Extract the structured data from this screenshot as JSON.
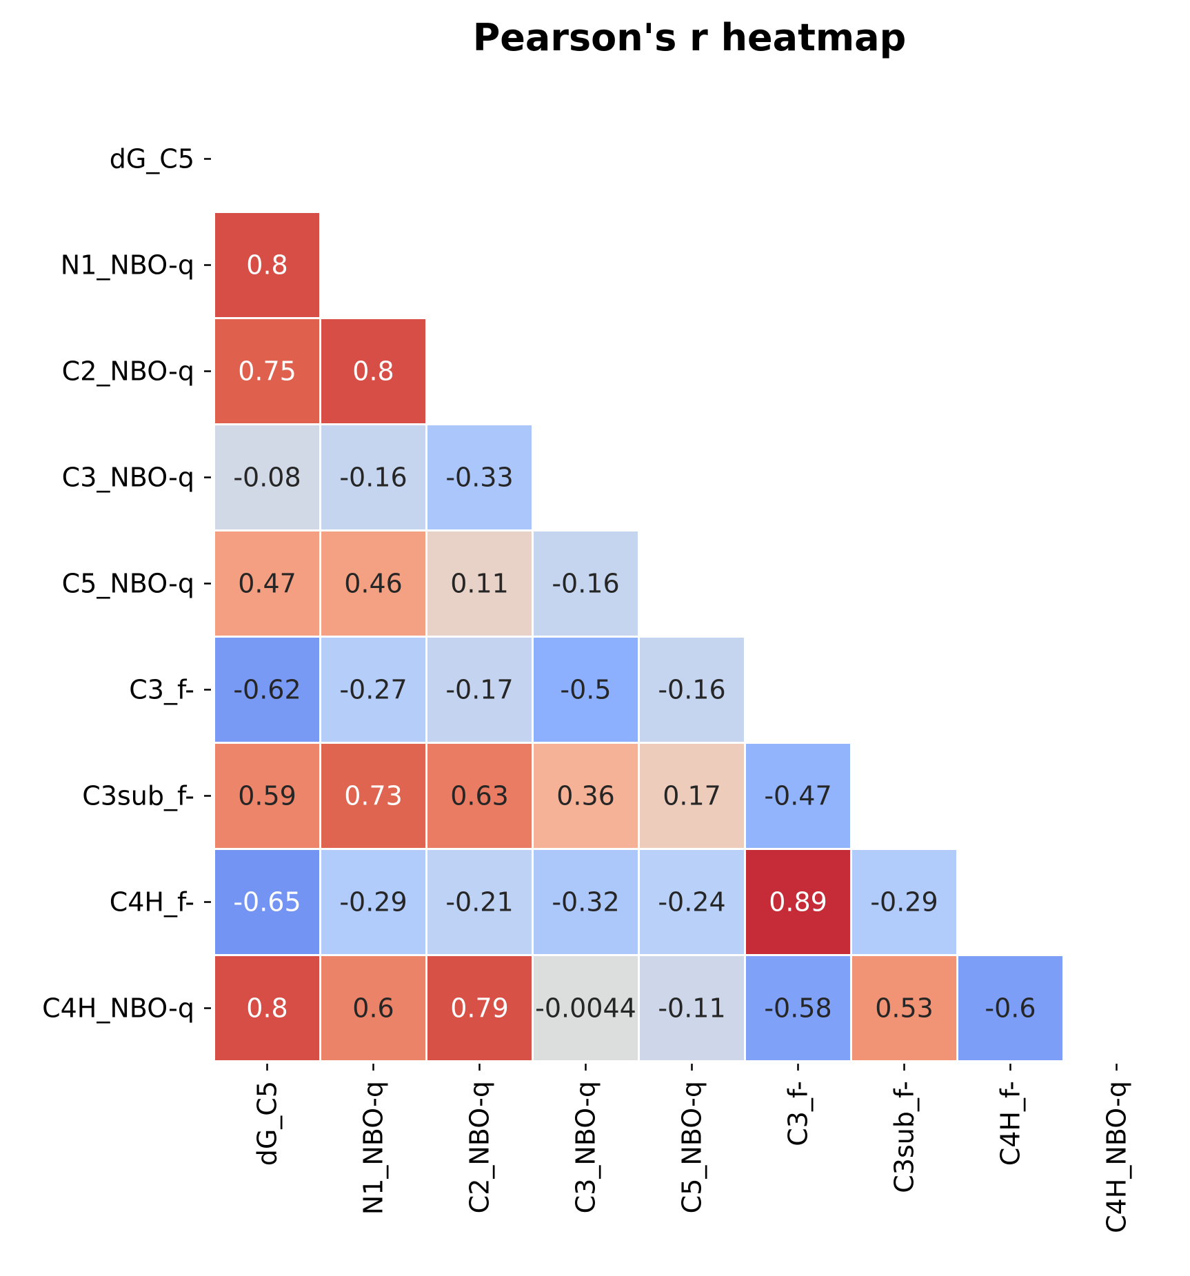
{
  "chart_data": {
    "type": "heatmap",
    "title": "Pearson's r heatmap",
    "mask": "upper-triangle-including-diagonal",
    "colormap": "coolwarm",
    "vmin": -1,
    "vmax": 1,
    "colorbar": false,
    "labels": [
      "dG_C5",
      "N1_NBO-q",
      "C2_NBO-q",
      "C3_NBO-q",
      "C5_NBO-q",
      "C3_f-",
      "C3sub_f-",
      "C4H_f-",
      "C4H_NBO-q"
    ],
    "cells": [
      {
        "row": 1,
        "col": 0,
        "value": 0.8,
        "label": "0.8"
      },
      {
        "row": 2,
        "col": 0,
        "value": 0.75,
        "label": "0.75"
      },
      {
        "row": 2,
        "col": 1,
        "value": 0.8,
        "label": "0.8"
      },
      {
        "row": 3,
        "col": 0,
        "value": -0.08,
        "label": "-0.08"
      },
      {
        "row": 3,
        "col": 1,
        "value": -0.16,
        "label": "-0.16"
      },
      {
        "row": 3,
        "col": 2,
        "value": -0.33,
        "label": "-0.33"
      },
      {
        "row": 4,
        "col": 0,
        "value": 0.47,
        "label": "0.47"
      },
      {
        "row": 4,
        "col": 1,
        "value": 0.46,
        "label": "0.46"
      },
      {
        "row": 4,
        "col": 2,
        "value": 0.11,
        "label": "0.11"
      },
      {
        "row": 4,
        "col": 3,
        "value": -0.16,
        "label": "-0.16"
      },
      {
        "row": 5,
        "col": 0,
        "value": -0.62,
        "label": "-0.62"
      },
      {
        "row": 5,
        "col": 1,
        "value": -0.27,
        "label": "-0.27"
      },
      {
        "row": 5,
        "col": 2,
        "value": -0.17,
        "label": "-0.17"
      },
      {
        "row": 5,
        "col": 3,
        "value": -0.5,
        "label": "-0.5"
      },
      {
        "row": 5,
        "col": 4,
        "value": -0.16,
        "label": "-0.16"
      },
      {
        "row": 6,
        "col": 0,
        "value": 0.59,
        "label": "0.59"
      },
      {
        "row": 6,
        "col": 1,
        "value": 0.73,
        "label": "0.73"
      },
      {
        "row": 6,
        "col": 2,
        "value": 0.63,
        "label": "0.63"
      },
      {
        "row": 6,
        "col": 3,
        "value": 0.36,
        "label": "0.36"
      },
      {
        "row": 6,
        "col": 4,
        "value": 0.17,
        "label": "0.17"
      },
      {
        "row": 6,
        "col": 5,
        "value": -0.47,
        "label": "-0.47"
      },
      {
        "row": 7,
        "col": 0,
        "value": -0.65,
        "label": "-0.65"
      },
      {
        "row": 7,
        "col": 1,
        "value": -0.29,
        "label": "-0.29"
      },
      {
        "row": 7,
        "col": 2,
        "value": -0.21,
        "label": "-0.21"
      },
      {
        "row": 7,
        "col": 3,
        "value": -0.32,
        "label": "-0.32"
      },
      {
        "row": 7,
        "col": 4,
        "value": -0.24,
        "label": "-0.24"
      },
      {
        "row": 7,
        "col": 5,
        "value": 0.89,
        "label": "0.89"
      },
      {
        "row": 7,
        "col": 6,
        "value": -0.29,
        "label": "-0.29"
      },
      {
        "row": 8,
        "col": 0,
        "value": 0.8,
        "label": "0.8"
      },
      {
        "row": 8,
        "col": 1,
        "value": 0.6,
        "label": "0.6"
      },
      {
        "row": 8,
        "col": 2,
        "value": 0.79,
        "label": "0.79"
      },
      {
        "row": 8,
        "col": 3,
        "value": -0.0044,
        "label": "-0.0044"
      },
      {
        "row": 8,
        "col": 4,
        "value": -0.11,
        "label": "-0.11"
      },
      {
        "row": 8,
        "col": 5,
        "value": -0.58,
        "label": "-0.58"
      },
      {
        "row": 8,
        "col": 6,
        "value": 0.53,
        "label": "0.53"
      },
      {
        "row": 8,
        "col": 7,
        "value": -0.6,
        "label": "-0.6"
      }
    ]
  }
}
